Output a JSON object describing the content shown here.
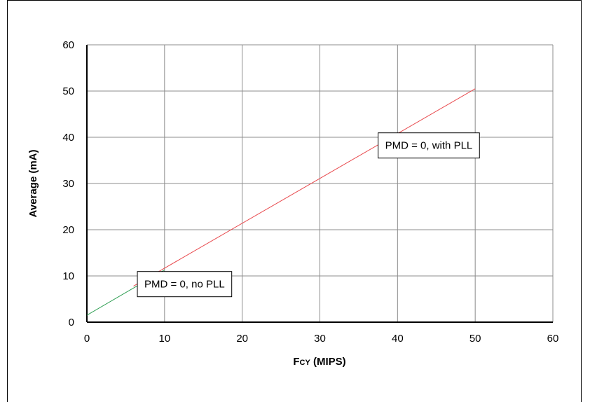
{
  "chart_data": {
    "type": "line",
    "xlabel": "Fcy (MIPS)",
    "ylabel": "Average (mA)",
    "xlim": [
      0,
      60
    ],
    "ylim": [
      0,
      60
    ],
    "x_ticks": [
      0,
      10,
      20,
      30,
      40,
      50,
      60
    ],
    "y_ticks": [
      0,
      10,
      20,
      30,
      40,
      50,
      60
    ],
    "grid": true,
    "series": [
      {
        "color": "#2e9e52",
        "x": [
          0,
          10
        ],
        "y": [
          1.5,
          11.3
        ]
      },
      {
        "color": "#e8474b",
        "x": [
          6,
          50
        ],
        "y": [
          7.8,
          50.5
        ]
      }
    ],
    "annotations": [
      {
        "text": "PMD = 0, with PLL",
        "x": 37.5,
        "y": 35.5
      },
      {
        "text": "PMD = 0, no PLL",
        "x": 6.5,
        "y": 5.5
      }
    ]
  }
}
